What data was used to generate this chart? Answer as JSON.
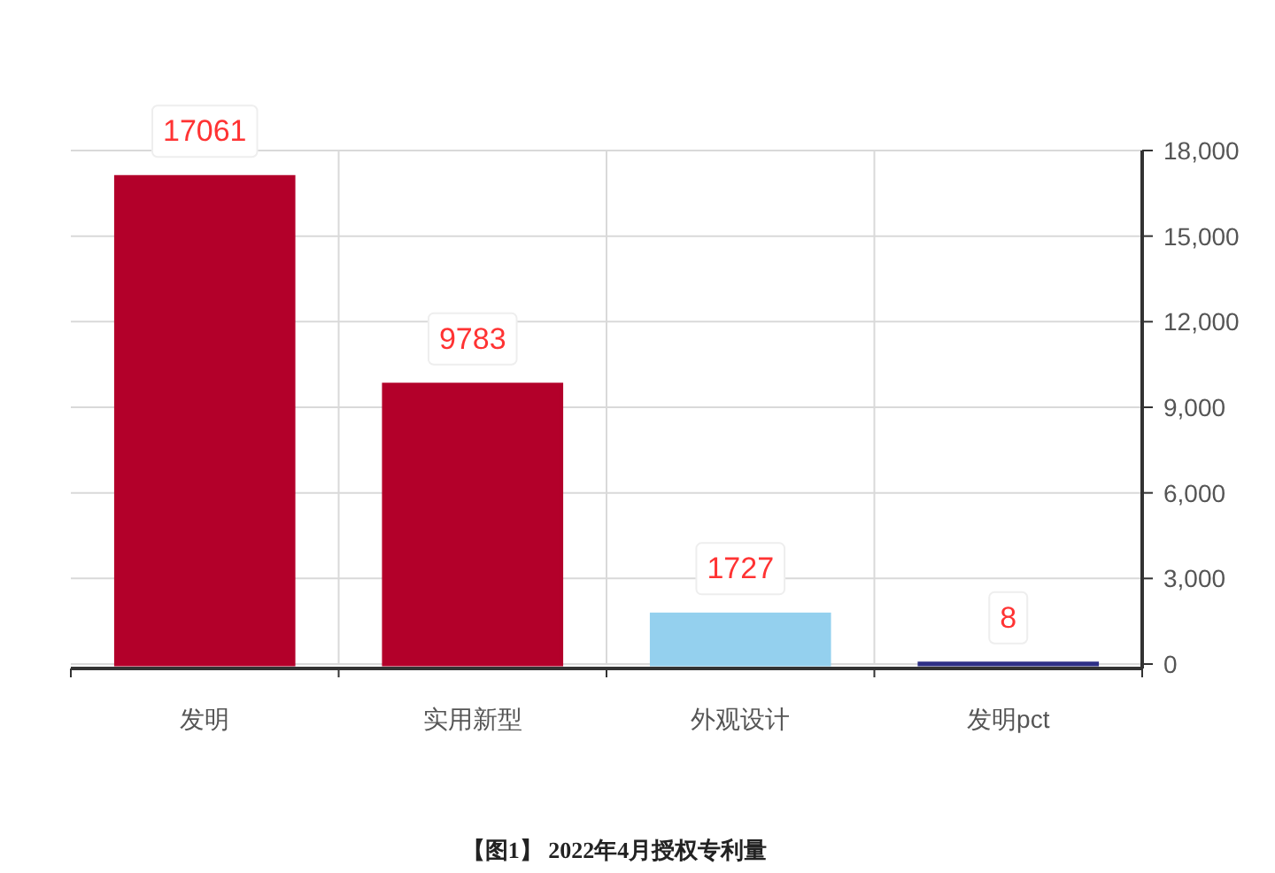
{
  "chart_data": {
    "type": "bar",
    "categories": [
      "发明",
      "实用新型",
      "外观设计",
      "发明pct"
    ],
    "values": [
      17061,
      9783,
      1727,
      8
    ],
    "colors": [
      "#b3002a",
      "#b3002a",
      "#94d0ee",
      "#2e3086"
    ],
    "ylim": [
      0,
      18000
    ],
    "yticks": [
      0,
      {
        "value": 3000,
        "label": "3,000"
      },
      {
        "value": 6000,
        "label": "6,000"
      },
      {
        "value": 9000,
        "label": "9,000"
      },
      {
        "value": 12000,
        "label": "12,000"
      },
      {
        "value": 15000,
        "label": "15,000"
      },
      {
        "value": 18000,
        "label": "18,000"
      }
    ],
    "grid": true,
    "data_labels": true,
    "annotations": [
      "【图1】 2022年4月授权专利量"
    ]
  }
}
